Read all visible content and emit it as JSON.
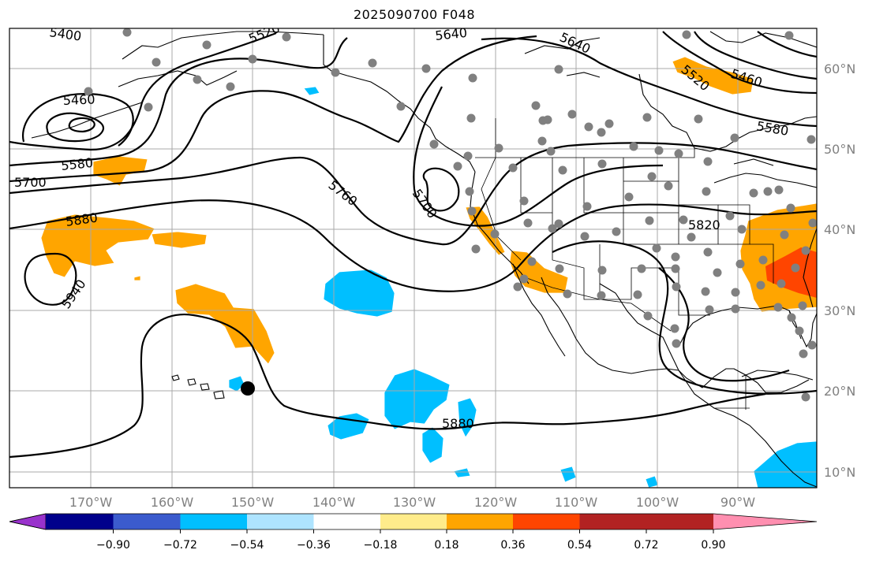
{
  "title": "2025090700 F048",
  "axes": {
    "lon_labels": [
      "170°W",
      "160°W",
      "150°W",
      "140°W",
      "130°W",
      "120°W",
      "110°W",
      "100°W",
      "90°W"
    ],
    "lat_labels": [
      "60°N",
      "50°N",
      "40°N",
      "30°N",
      "20°N",
      "10°N"
    ]
  },
  "contour_labels": [
    "5400",
    "5520",
    "5640",
    "5640",
    "5460",
    "5520",
    "5460",
    "5580",
    "5580",
    "5700",
    "5760",
    "5700",
    "5820",
    "5880",
    "5940",
    "5880"
  ],
  "colorbar": {
    "ticks": [
      "−0.90",
      "−0.72",
      "−0.54",
      "−0.36",
      "−0.18",
      "0.18",
      "0.36",
      "0.54",
      "0.72",
      "0.90"
    ],
    "colors": [
      "#9932cc",
      "#00008b",
      "#3b5bcd",
      "#00bfff",
      "#aee4ff",
      "#ffffff",
      "#ffec8b",
      "#ffa500",
      "#ff4500",
      "#b22222",
      "#ff8fb0"
    ]
  },
  "colors": {
    "positive_shade": "#ffa500",
    "strong_positive": "#ff4500",
    "negative_shade": "#00bfff",
    "station_dot": "#808080"
  },
  "marker": {
    "name": "storm-center",
    "lon": -150.5,
    "lat": 20.2
  }
}
